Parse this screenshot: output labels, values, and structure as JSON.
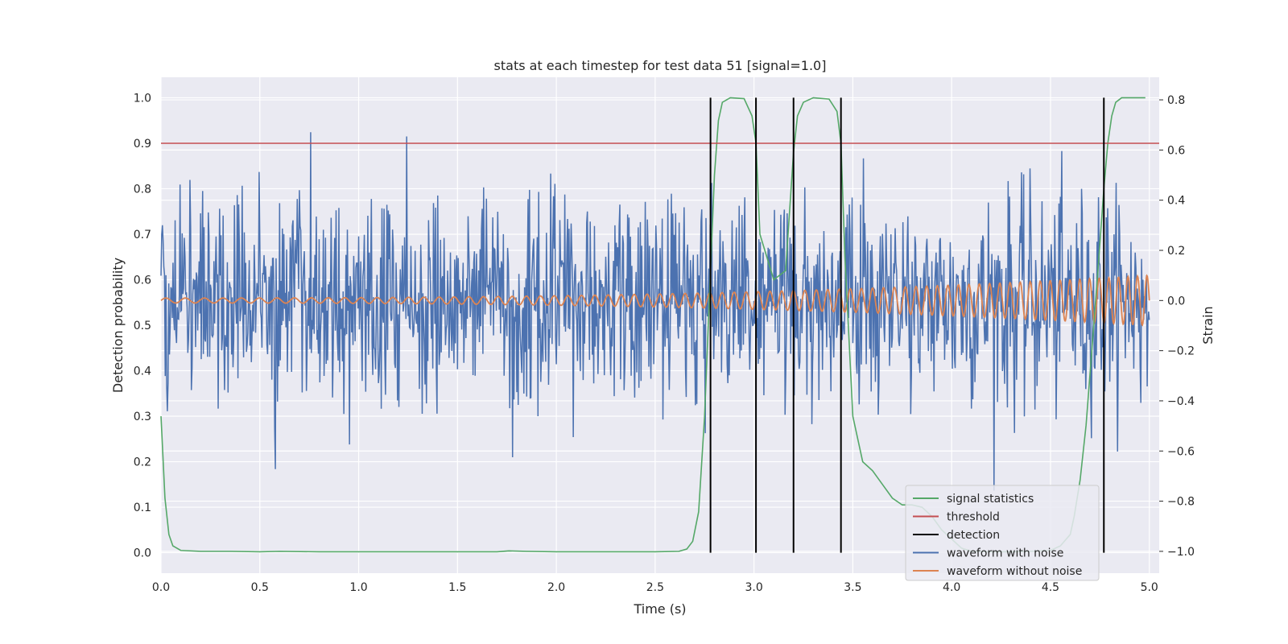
{
  "chart_data": {
    "type": "line",
    "title": "stats at each timestep for test data 51 [signal=1.0]",
    "xlabel": "Time (s)",
    "ylabel": "Detection probability",
    "y2label": "Strain",
    "xlim": [
      0.0,
      5.05
    ],
    "ylim": [
      -0.045,
      1.045
    ],
    "y2lim": [
      -1.087,
      0.89
    ],
    "xticks": [
      "0.0",
      "0.5",
      "1.0",
      "1.5",
      "2.0",
      "2.5",
      "3.0",
      "3.5",
      "4.0",
      "4.5",
      "5.0"
    ],
    "yticks": [
      "0.0",
      "0.1",
      "0.2",
      "0.3",
      "0.4",
      "0.5",
      "0.6",
      "0.7",
      "0.8",
      "0.9",
      "1.0"
    ],
    "y2ticks": [
      "−1.0",
      "−0.8",
      "−0.6",
      "−0.4",
      "−0.2",
      "0.0",
      "0.2",
      "0.4",
      "0.6",
      "0.8"
    ],
    "grid": true,
    "legend_position": "lower-right",
    "threshold": 0.9,
    "detections": [
      2.78,
      3.01,
      3.2,
      3.44,
      4.77
    ],
    "signal_statistics": {
      "name": "signal statistics",
      "color": "#55a868",
      "x": [
        0.0,
        0.02,
        0.04,
        0.06,
        0.1,
        0.2,
        0.35,
        0.5,
        0.6,
        0.8,
        1.0,
        1.5,
        1.7,
        1.76,
        1.85,
        2.0,
        2.5,
        2.62,
        2.66,
        2.69,
        2.72,
        2.75,
        2.78,
        2.8,
        2.82,
        2.84,
        2.88,
        2.95,
        2.99,
        3.01,
        3.03,
        3.1,
        3.16,
        3.18,
        3.2,
        3.22,
        3.25,
        3.3,
        3.38,
        3.42,
        3.44,
        3.46,
        3.5,
        3.55,
        3.6,
        3.65,
        3.7,
        3.75,
        3.8,
        3.85,
        3.9,
        3.95,
        4.0,
        4.05,
        4.1,
        4.2,
        4.3,
        4.4,
        4.5,
        4.55,
        4.6,
        4.62,
        4.65,
        4.68,
        4.71,
        4.74,
        4.77,
        4.79,
        4.81,
        4.83,
        4.86,
        4.9,
        4.95,
        4.98
      ],
      "y": [
        0.3,
        0.12,
        0.04,
        0.015,
        0.005,
        0.003,
        0.003,
        0.002,
        0.003,
        0.002,
        0.002,
        0.002,
        0.002,
        0.004,
        0.003,
        0.002,
        0.002,
        0.003,
        0.008,
        0.025,
        0.09,
        0.3,
        0.62,
        0.83,
        0.95,
        0.99,
        1.0,
        0.998,
        0.96,
        0.9,
        0.7,
        0.6,
        0.62,
        0.75,
        0.88,
        0.96,
        0.99,
        1.0,
        0.997,
        0.97,
        0.9,
        0.65,
        0.3,
        0.2,
        0.18,
        0.15,
        0.12,
        0.105,
        0.105,
        0.1,
        0.08,
        0.05,
        0.03,
        0.01,
        0.003,
        0.002,
        0.002,
        0.003,
        0.005,
        0.015,
        0.04,
        0.08,
        0.16,
        0.28,
        0.45,
        0.62,
        0.8,
        0.9,
        0.96,
        0.99,
        1.0,
        1.0,
        1.0,
        1.0
      ]
    },
    "waveform_with_noise": {
      "name": "waveform with noise",
      "color": "#4c72b0",
      "samples": 1400,
      "noise_std": 0.2,
      "range": [
        -0.8,
        0.8
      ]
    },
    "waveform_without_noise": {
      "name": "waveform without noise",
      "color": "#dd8452",
      "amplitude_start": 0.01,
      "amplitude_end": 0.1,
      "freq_start_hz": 10,
      "freq_end_hz": 21
    },
    "legend": [
      {
        "label": "signal statistics",
        "color": "#55a868"
      },
      {
        "label": "threshold",
        "color": "#c44e52"
      },
      {
        "label": "detection",
        "color": "#000000"
      },
      {
        "label": "waveform with noise",
        "color": "#4c72b0"
      },
      {
        "label": "waveform without noise",
        "color": "#dd8452"
      }
    ]
  }
}
